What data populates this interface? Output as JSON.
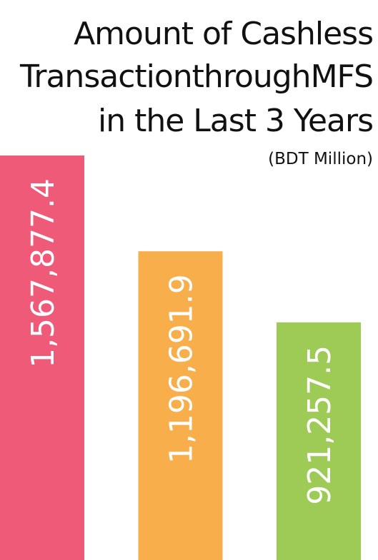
{
  "chart_data": {
    "type": "bar",
    "title": [
      "Amount of Cashless",
      "TransactionthroughMFS",
      "in the Last 3 Years"
    ],
    "subtitle": "(BDT Million)",
    "categories": [
      null,
      null,
      null
    ],
    "values": [
      1567877.4,
      1196691.9,
      921257.5
    ],
    "value_labels": [
      "1,567,877.4",
      "1,196,691.9",
      "921,257.5"
    ],
    "colors": [
      "#ef5a78",
      "#f8ae4a",
      "#9dcb56"
    ]
  }
}
